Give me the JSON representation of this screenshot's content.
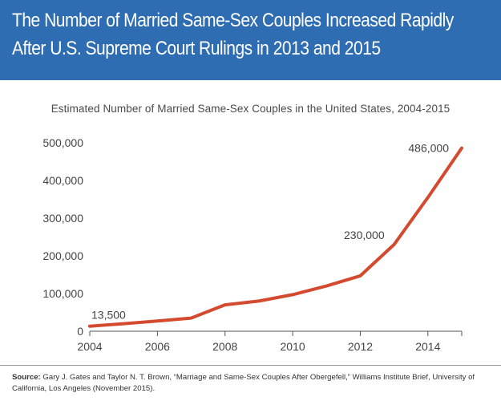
{
  "header": {
    "title_line1": "The Number of Married Same-Sex Couples Increased Rapidly",
    "title_line2": "After U.S. Supreme Court Rulings in 2013 and 2015"
  },
  "source": {
    "label": "Source:",
    "text": " Gary J. Gates and Taylor N. T. Brown, “Marriage and Same-Sex Couples After Obergefell,” Williams Institute Brief, University of California, Los Angeles (November 2015)."
  },
  "colors": {
    "header_bg": "#2f6db3",
    "line": "#d34a2e"
  },
  "chart_data": {
    "type": "line",
    "title": "Estimated Number of Married Same-Sex Couples in the United States, 2004-2015",
    "xlabel": "",
    "ylabel": "",
    "x": [
      2004,
      2005,
      2006,
      2007,
      2008,
      2009,
      2010,
      2011,
      2012,
      2013,
      2014,
      2015
    ],
    "series": [
      {
        "values": [
          13500,
          20000,
          27000,
          35000,
          70000,
          80000,
          97000,
          120000,
          147000,
          230000,
          355000,
          486000
        ]
      }
    ],
    "xlim": [
      2004,
      2015
    ],
    "ylim": [
      0,
      500000
    ],
    "x_ticks": [
      2004,
      2006,
      2008,
      2010,
      2012,
      2014
    ],
    "y_ticks": [
      0,
      100000,
      200000,
      300000,
      400000,
      500000
    ],
    "y_tick_labels": [
      "0",
      "100,000",
      "200,000",
      "300,000",
      "400,000",
      "500,000"
    ],
    "annotations": [
      {
        "x": 2004,
        "text": "13,500"
      },
      {
        "x": 2013,
        "text": "230,000"
      },
      {
        "x": 2015,
        "text": "486,000"
      }
    ],
    "grid": false
  }
}
